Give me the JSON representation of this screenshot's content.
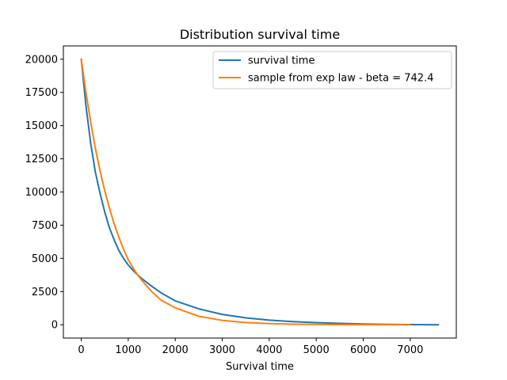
{
  "chart_data": {
    "type": "line",
    "title": "Distribution survival time",
    "xlabel": "Survival time",
    "ylabel": "",
    "xlim": [
      -380,
      7980
    ],
    "ylim": [
      -1000,
      21000
    ],
    "xticks": [
      0,
      1000,
      2000,
      3000,
      4000,
      5000,
      6000,
      7000
    ],
    "yticks": [
      0,
      2500,
      5000,
      7500,
      10000,
      12500,
      15000,
      17500,
      20000
    ],
    "xtick_labels": [
      "0",
      "1000",
      "2000",
      "3000",
      "4000",
      "5000",
      "6000",
      "7000"
    ],
    "ytick_labels": [
      "0",
      "2500",
      "5000",
      "7500",
      "10000",
      "12500",
      "15000",
      "17500",
      "20000"
    ],
    "grid": false,
    "legend_position": "top-right",
    "series": [
      {
        "name": "survival time",
        "color": "#1f77b4",
        "x": [
          0,
          100,
          200,
          300,
          400,
          500,
          600,
          700,
          800,
          900,
          1000,
          1100,
          1200,
          1300,
          1500,
          1700,
          2000,
          2500,
          3000,
          3500,
          4000,
          4500,
          5000,
          5500,
          6000,
          6500,
          7000,
          7600
        ],
        "y": [
          20000,
          16500,
          13700,
          11500,
          9900,
          8500,
          7300,
          6400,
          5600,
          5000,
          4500,
          4100,
          3750,
          3450,
          2900,
          2400,
          1800,
          1200,
          780,
          520,
          350,
          240,
          160,
          100,
          60,
          30,
          10,
          0
        ]
      },
      {
        "name": "sample from exp law - beta = 742.4",
        "color": "#ff7f0e",
        "x": [
          0,
          100,
          200,
          300,
          400,
          500,
          600,
          700,
          800,
          900,
          1000,
          1100,
          1200,
          1300,
          1500,
          1700,
          2000,
          2500,
          3000,
          3500,
          4000,
          4500,
          5000,
          5500,
          6000,
          6500,
          7000
        ],
        "y": [
          20000,
          17500,
          15300,
          13300,
          11600,
          10100,
          8800,
          7600,
          6600,
          5700,
          4900,
          4300,
          3750,
          3300,
          2500,
          1850,
          1280,
          640,
          330,
          170,
          90,
          45,
          25,
          12,
          6,
          3,
          1
        ]
      }
    ]
  }
}
